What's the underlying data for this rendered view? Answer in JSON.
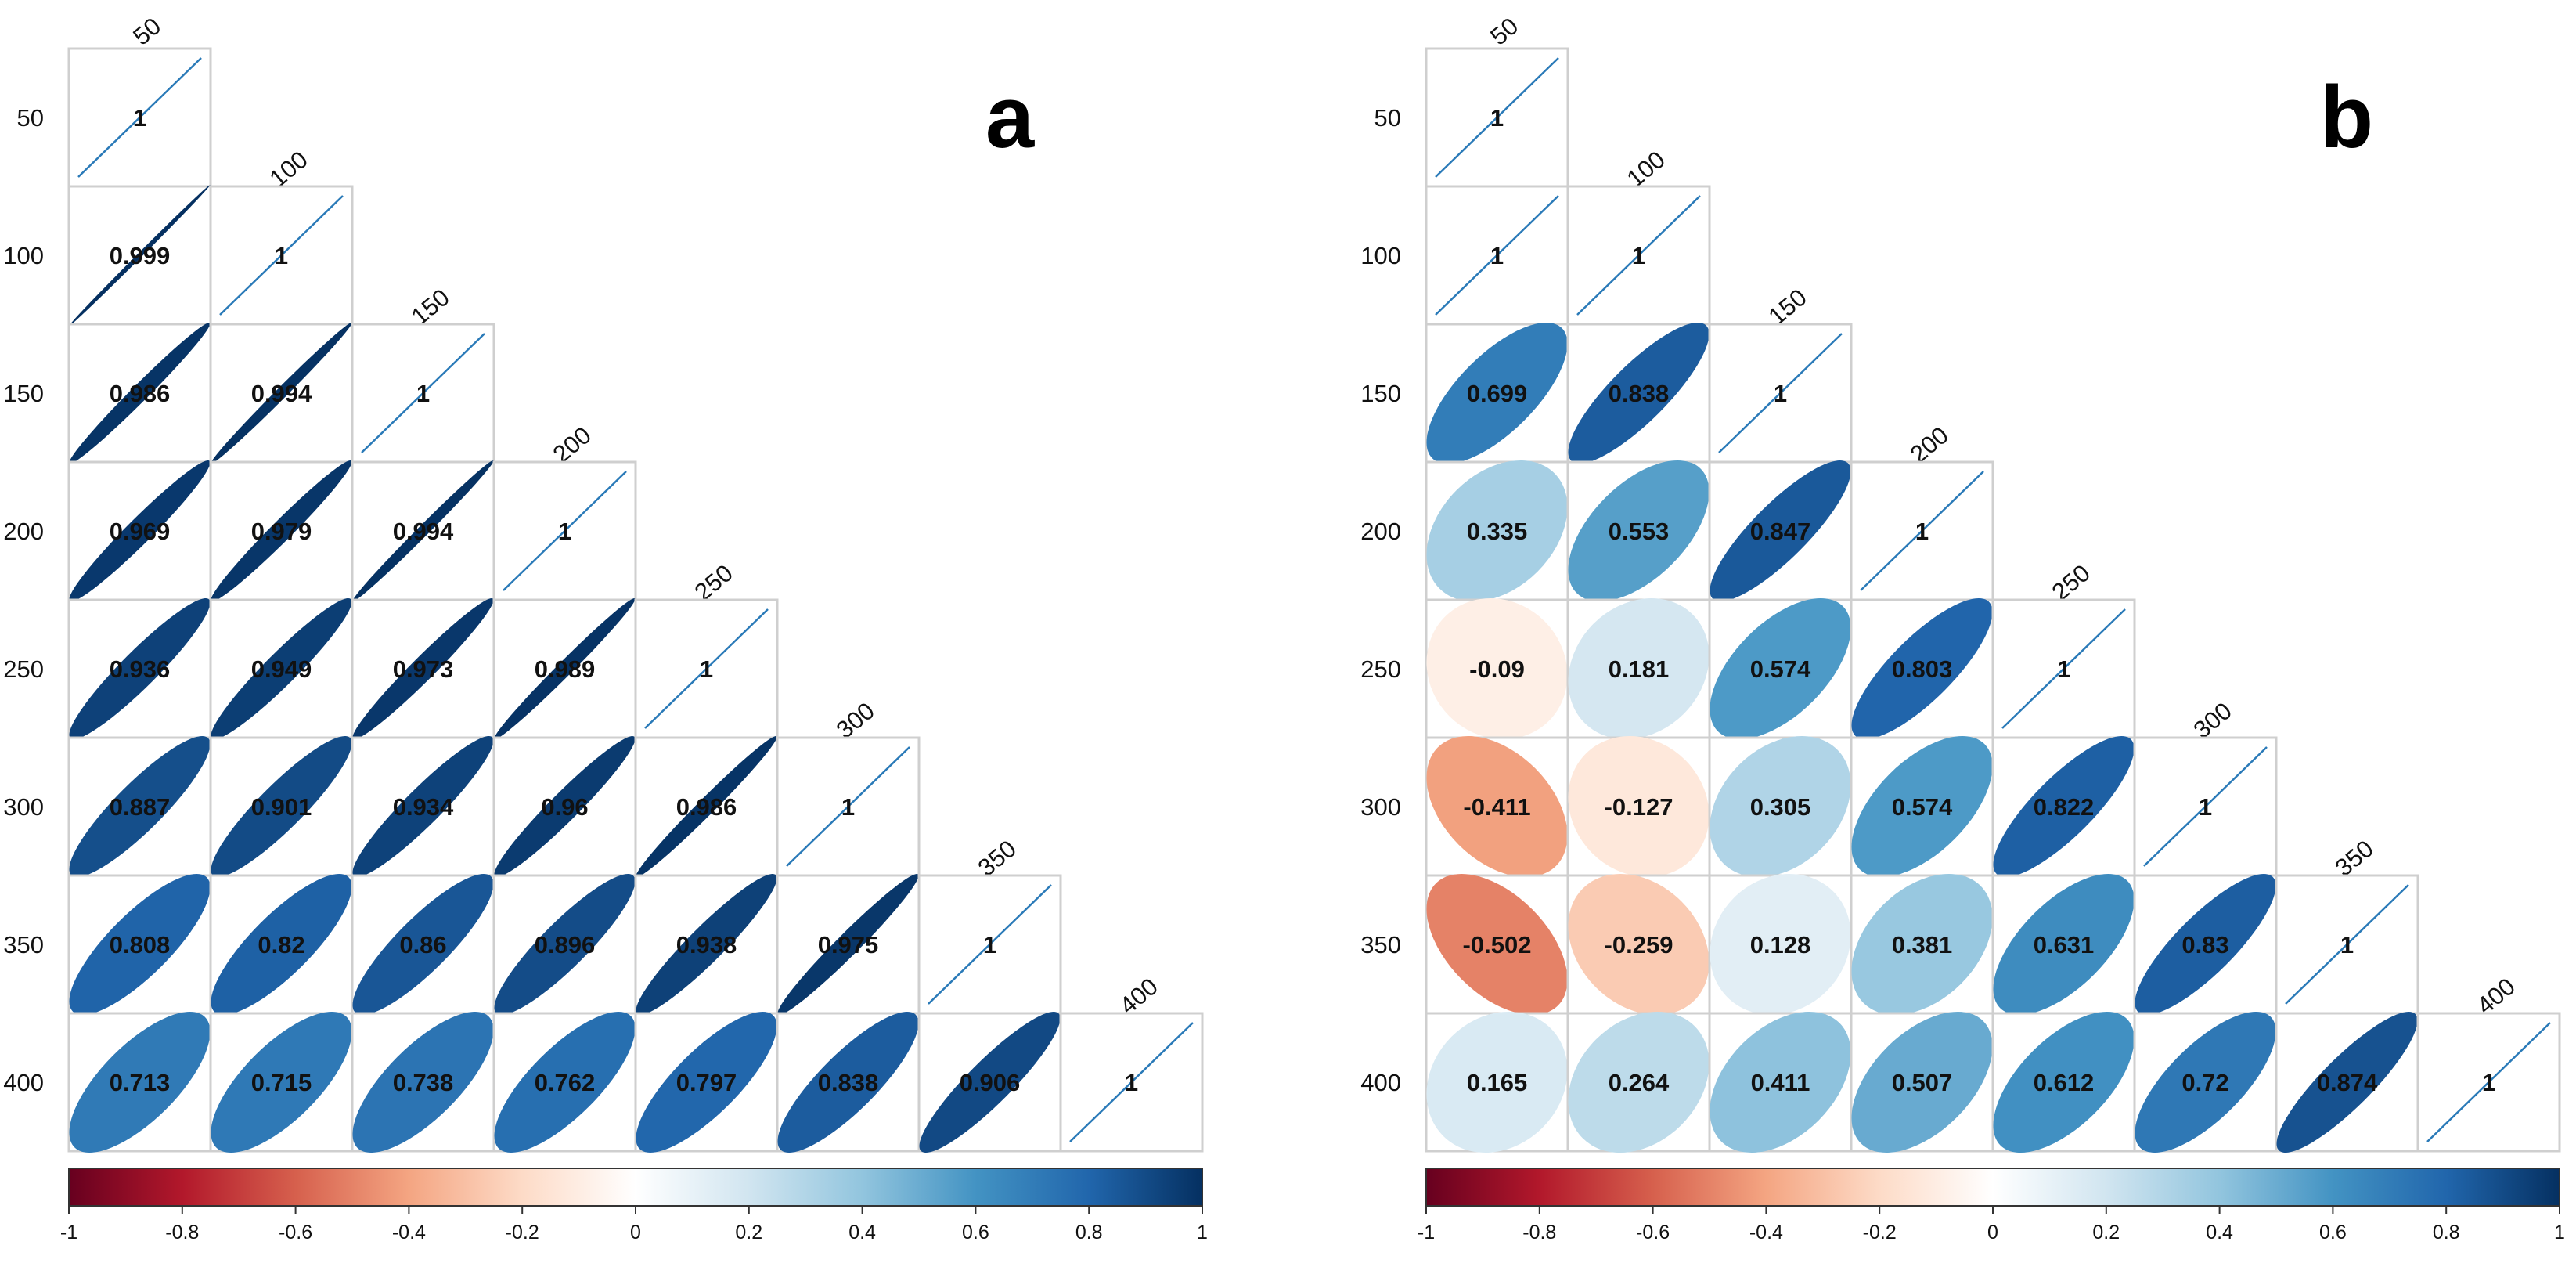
{
  "chart_data": [
    {
      "type": "heatmap",
      "panel_label": "a",
      "labels": [
        "50",
        "100",
        "150",
        "200",
        "250",
        "300",
        "350",
        "400"
      ],
      "matrix": [
        [
          1
        ],
        [
          0.999,
          1
        ],
        [
          0.986,
          0.994,
          1
        ],
        [
          0.969,
          0.979,
          0.994,
          1
        ],
        [
          0.936,
          0.949,
          0.973,
          0.989,
          1
        ],
        [
          0.887,
          0.901,
          0.934,
          0.96,
          0.986,
          1
        ],
        [
          0.808,
          0.82,
          0.86,
          0.896,
          0.938,
          0.975,
          1
        ],
        [
          0.713,
          0.715,
          0.738,
          0.762,
          0.797,
          0.838,
          0.906,
          1
        ]
      ],
      "value_labels": [
        [
          "1"
        ],
        [
          "0.999",
          "1"
        ],
        [
          "0.986",
          "0.994",
          "1"
        ],
        [
          "0.969",
          "0.979",
          "0.994",
          "1"
        ],
        [
          "0.936",
          "0.949",
          "0.973",
          "0.989",
          "1"
        ],
        [
          "0.887",
          "0.901",
          "0.934",
          "0.96",
          "0.986",
          "1"
        ],
        [
          "0.808",
          "0.82",
          "0.86",
          "0.896",
          "0.938",
          "0.975",
          "1"
        ],
        [
          "0.713",
          "0.715",
          "0.738",
          "0.762",
          "0.797",
          "0.838",
          "0.906",
          "1"
        ]
      ],
      "colorbar": {
        "range": [
          -1,
          1
        ],
        "ticks": [
          -1,
          -0.8,
          -0.6,
          -0.4,
          -0.2,
          0,
          0.2,
          0.4,
          0.6,
          0.8,
          1
        ],
        "tick_labels": [
          "-1",
          "-0.8",
          "-0.6",
          "-0.4",
          "-0.2",
          "0",
          "0.2",
          "0.4",
          "0.6",
          "0.8",
          "1"
        ]
      }
    },
    {
      "type": "heatmap",
      "panel_label": "b",
      "labels": [
        "50",
        "100",
        "150",
        "200",
        "250",
        "300",
        "350",
        "400"
      ],
      "matrix": [
        [
          1
        ],
        [
          1,
          1
        ],
        [
          0.699,
          0.838,
          1
        ],
        [
          0.335,
          0.553,
          0.847,
          1
        ],
        [
          -0.09,
          0.181,
          0.574,
          0.803,
          1
        ],
        [
          -0.411,
          -0.127,
          0.305,
          0.574,
          0.822,
          1
        ],
        [
          -0.502,
          -0.259,
          0.128,
          0.381,
          0.631,
          0.83,
          1
        ],
        [
          0.165,
          0.264,
          0.411,
          0.507,
          0.612,
          0.72,
          0.874,
          1
        ]
      ],
      "value_labels": [
        [
          "1"
        ],
        [
          "1",
          "1"
        ],
        [
          "0.699",
          "0.838",
          "1"
        ],
        [
          "0.335",
          "0.553",
          "0.847",
          "1"
        ],
        [
          "-0.09",
          "0.181",
          "0.574",
          "0.803",
          "1"
        ],
        [
          "-0.411",
          "-0.127",
          "0.305",
          "0.574",
          "0.822",
          "1"
        ],
        [
          "-0.502",
          "-0.259",
          "0.128",
          "0.381",
          "0.631",
          "0.83",
          "1"
        ],
        [
          "0.165",
          "0.264",
          "0.411",
          "0.507",
          "0.612",
          "0.72",
          "0.874",
          "1"
        ]
      ],
      "colorbar": {
        "range": [
          -1,
          1
        ],
        "ticks": [
          -1,
          -0.8,
          -0.6,
          -0.4,
          -0.2,
          0,
          0.2,
          0.4,
          0.6,
          0.8,
          1
        ],
        "tick_labels": [
          "-1",
          "-0.8",
          "-0.6",
          "-0.4",
          "-0.2",
          "0",
          "0.2",
          "0.4",
          "0.6",
          "0.8",
          "1"
        ]
      }
    }
  ],
  "colors": {
    "negative": "#c7282d",
    "neutral": "#ffffff",
    "positive": "#0b6aa2",
    "ramp": [
      "#67001f",
      "#b2182b",
      "#d6604d",
      "#f4a582",
      "#fddbc7",
      "#ffffff",
      "#d1e5f0",
      "#92c5de",
      "#4393c3",
      "#2166ac",
      "#053061"
    ],
    "unit_line": "#2a7ab8",
    "grid": "#cfcfcf"
  }
}
